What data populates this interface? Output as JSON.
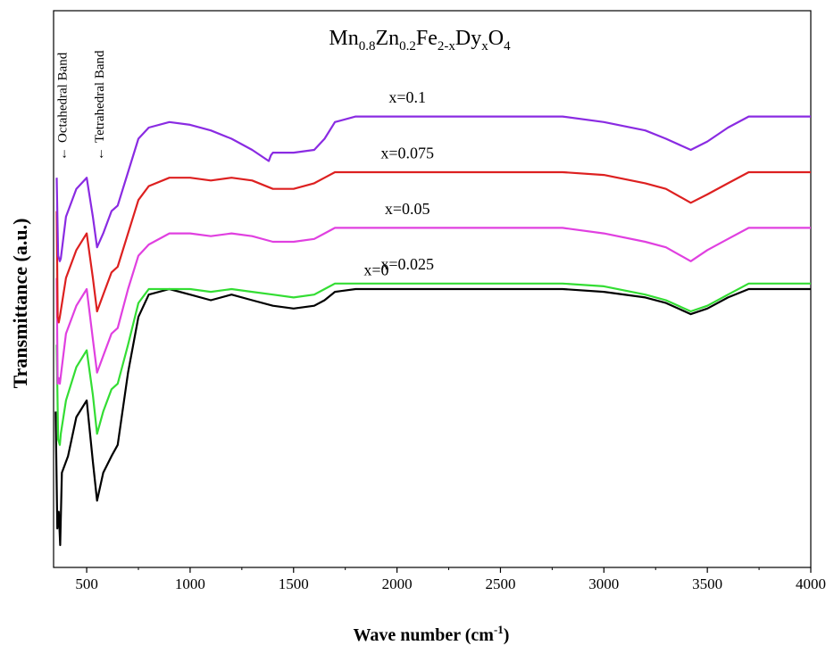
{
  "chart_data": {
    "type": "line",
    "title": {
      "parts": [
        {
          "text": "Mn",
          "sub": false
        },
        {
          "text": "0.8",
          "sub": true
        },
        {
          "text": "Zn",
          "sub": false
        },
        {
          "text": "0.2",
          "sub": true
        },
        {
          "text": "Fe",
          "sub": false
        },
        {
          "text": "2-x",
          "sub": true
        },
        {
          "text": "Dy",
          "sub": false
        },
        {
          "text": "x",
          "sub": true
        },
        {
          "text": "O",
          "sub": false
        },
        {
          "text": "4",
          "sub": true
        }
      ]
    },
    "xlabel": "Wave number (cm-1)",
    "xlabel_parts": {
      "main": "Wave number (cm",
      "sup": "-1",
      "close": ")"
    },
    "ylabel": "Transmittance (a.u.)",
    "xlim": [
      340,
      4000
    ],
    "ylim": [
      0,
      1
    ],
    "x_ticks": [
      500,
      1000,
      1500,
      2000,
      2500,
      3000,
      3500,
      4000
    ],
    "x_tick_labels": [
      "500",
      "1000",
      "1500",
      "2000",
      "2500",
      "3000",
      "3500",
      "4000"
    ],
    "y_ticks_shown": false,
    "grid": false,
    "legend": "none",
    "band_annotations": [
      {
        "text": "Octahedral Band",
        "x": 380
      },
      {
        "text": "Tetrahedral Band",
        "x": 560
      }
    ],
    "series": [
      {
        "name": "x=0",
        "color": "#000000",
        "points": [
          [
            350,
            0.28
          ],
          [
            358,
            0.07
          ],
          [
            365,
            0.1
          ],
          [
            372,
            0.04
          ],
          [
            380,
            0.17
          ],
          [
            410,
            0.2
          ],
          [
            450,
            0.27
          ],
          [
            500,
            0.3
          ],
          [
            530,
            0.19
          ],
          [
            550,
            0.12
          ],
          [
            580,
            0.17
          ],
          [
            620,
            0.2
          ],
          [
            650,
            0.22
          ],
          [
            700,
            0.35
          ],
          [
            750,
            0.45
          ],
          [
            800,
            0.49
          ],
          [
            900,
            0.5
          ],
          [
            1000,
            0.49
          ],
          [
            1100,
            0.48
          ],
          [
            1200,
            0.49
          ],
          [
            1300,
            0.48
          ],
          [
            1400,
            0.47
          ],
          [
            1500,
            0.465
          ],
          [
            1600,
            0.47
          ],
          [
            1650,
            0.48
          ],
          [
            1700,
            0.495
          ],
          [
            1800,
            0.5
          ],
          [
            2000,
            0.5
          ],
          [
            2500,
            0.5
          ],
          [
            2800,
            0.5
          ],
          [
            3000,
            0.495
          ],
          [
            3200,
            0.485
          ],
          [
            3300,
            0.475
          ],
          [
            3420,
            0.455
          ],
          [
            3500,
            0.465
          ],
          [
            3600,
            0.485
          ],
          [
            3700,
            0.5
          ],
          [
            3800,
            0.5
          ],
          [
            4000,
            0.5
          ]
        ]
      },
      {
        "name": "x=0.025",
        "color": "#33dd33",
        "points": [
          [
            355,
            0.4
          ],
          [
            362,
            0.23
          ],
          [
            370,
            0.22
          ],
          [
            375,
            0.24
          ],
          [
            400,
            0.3
          ],
          [
            450,
            0.36
          ],
          [
            500,
            0.39
          ],
          [
            530,
            0.31
          ],
          [
            550,
            0.24
          ],
          [
            580,
            0.28
          ],
          [
            620,
            0.32
          ],
          [
            650,
            0.33
          ],
          [
            700,
            0.4
          ],
          [
            750,
            0.475
          ],
          [
            800,
            0.5
          ],
          [
            900,
            0.5
          ],
          [
            1000,
            0.5
          ],
          [
            1100,
            0.495
          ],
          [
            1200,
            0.5
          ],
          [
            1300,
            0.495
          ],
          [
            1400,
            0.49
          ],
          [
            1500,
            0.485
          ],
          [
            1600,
            0.49
          ],
          [
            1650,
            0.5
          ],
          [
            1700,
            0.51
          ],
          [
            2000,
            0.51
          ],
          [
            2500,
            0.51
          ],
          [
            2800,
            0.51
          ],
          [
            3000,
            0.505
          ],
          [
            3200,
            0.49
          ],
          [
            3300,
            0.48
          ],
          [
            3420,
            0.46
          ],
          [
            3500,
            0.47
          ],
          [
            3600,
            0.49
          ],
          [
            3700,
            0.51
          ],
          [
            4000,
            0.51
          ]
        ]
      },
      {
        "name": "x=0.05",
        "color": "#e040e0",
        "points": [
          [
            355,
            0.52
          ],
          [
            360,
            0.33
          ],
          [
            365,
            0.34
          ],
          [
            370,
            0.33
          ],
          [
            400,
            0.42
          ],
          [
            450,
            0.47
          ],
          [
            500,
            0.5
          ],
          [
            530,
            0.41
          ],
          [
            550,
            0.35
          ],
          [
            580,
            0.38
          ],
          [
            620,
            0.42
          ],
          [
            650,
            0.43
          ],
          [
            700,
            0.5
          ],
          [
            750,
            0.56
          ],
          [
            800,
            0.58
          ],
          [
            900,
            0.6
          ],
          [
            1000,
            0.6
          ],
          [
            1100,
            0.595
          ],
          [
            1200,
            0.6
          ],
          [
            1300,
            0.595
          ],
          [
            1400,
            0.585
          ],
          [
            1500,
            0.585
          ],
          [
            1600,
            0.59
          ],
          [
            1650,
            0.6
          ],
          [
            1700,
            0.61
          ],
          [
            2000,
            0.61
          ],
          [
            2500,
            0.61
          ],
          [
            2800,
            0.61
          ],
          [
            3000,
            0.6
          ],
          [
            3200,
            0.585
          ],
          [
            3300,
            0.575
          ],
          [
            3420,
            0.55
          ],
          [
            3500,
            0.57
          ],
          [
            3600,
            0.59
          ],
          [
            3700,
            0.61
          ],
          [
            4000,
            0.61
          ]
        ]
      },
      {
        "name": "x=0.075",
        "color": "#dd2020",
        "points": [
          [
            355,
            0.64
          ],
          [
            360,
            0.45
          ],
          [
            365,
            0.44
          ],
          [
            370,
            0.45
          ],
          [
            400,
            0.52
          ],
          [
            450,
            0.57
          ],
          [
            500,
            0.6
          ],
          [
            530,
            0.52
          ],
          [
            550,
            0.46
          ],
          [
            580,
            0.49
          ],
          [
            620,
            0.53
          ],
          [
            650,
            0.54
          ],
          [
            700,
            0.6
          ],
          [
            750,
            0.66
          ],
          [
            800,
            0.685
          ],
          [
            900,
            0.7
          ],
          [
            1000,
            0.7
          ],
          [
            1100,
            0.695
          ],
          [
            1200,
            0.7
          ],
          [
            1300,
            0.695
          ],
          [
            1400,
            0.68
          ],
          [
            1500,
            0.68
          ],
          [
            1600,
            0.69
          ],
          [
            1650,
            0.7
          ],
          [
            1700,
            0.71
          ],
          [
            2000,
            0.71
          ],
          [
            2500,
            0.71
          ],
          [
            2800,
            0.71
          ],
          [
            3000,
            0.705
          ],
          [
            3200,
            0.69
          ],
          [
            3300,
            0.68
          ],
          [
            3420,
            0.655
          ],
          [
            3500,
            0.67
          ],
          [
            3600,
            0.69
          ],
          [
            3700,
            0.71
          ],
          [
            4000,
            0.71
          ]
        ]
      },
      {
        "name": "x=0.1",
        "color": "#8a2be2",
        "points": [
          [
            355,
            0.7
          ],
          [
            362,
            0.56
          ],
          [
            370,
            0.55
          ],
          [
            375,
            0.555
          ],
          [
            400,
            0.63
          ],
          [
            450,
            0.68
          ],
          [
            500,
            0.7
          ],
          [
            530,
            0.63
          ],
          [
            550,
            0.575
          ],
          [
            580,
            0.6
          ],
          [
            620,
            0.64
          ],
          [
            650,
            0.65
          ],
          [
            700,
            0.71
          ],
          [
            750,
            0.77
          ],
          [
            800,
            0.79
          ],
          [
            900,
            0.8
          ],
          [
            1000,
            0.795
          ],
          [
            1100,
            0.785
          ],
          [
            1200,
            0.77
          ],
          [
            1300,
            0.75
          ],
          [
            1380,
            0.73
          ],
          [
            1390,
            0.74
          ],
          [
            1400,
            0.745
          ],
          [
            1500,
            0.745
          ],
          [
            1600,
            0.75
          ],
          [
            1650,
            0.77
          ],
          [
            1700,
            0.8
          ],
          [
            1800,
            0.81
          ],
          [
            2000,
            0.81
          ],
          [
            2500,
            0.81
          ],
          [
            2800,
            0.81
          ],
          [
            3000,
            0.8
          ],
          [
            3200,
            0.785
          ],
          [
            3300,
            0.77
          ],
          [
            3420,
            0.75
          ],
          [
            3500,
            0.765
          ],
          [
            3600,
            0.79
          ],
          [
            3700,
            0.81
          ],
          [
            4000,
            0.81
          ]
        ]
      }
    ],
    "series_labels": [
      {
        "text": "x=0",
        "x": 1900,
        "y": 0.525
      },
      {
        "text": "x=0.025",
        "x": 2050,
        "y": 0.535
      },
      {
        "text": "x=0.05",
        "x": 2050,
        "y": 0.635
      },
      {
        "text": "x=0.075",
        "x": 2050,
        "y": 0.735
      },
      {
        "text": "x=0.1",
        "x": 2050,
        "y": 0.835
      }
    ]
  }
}
